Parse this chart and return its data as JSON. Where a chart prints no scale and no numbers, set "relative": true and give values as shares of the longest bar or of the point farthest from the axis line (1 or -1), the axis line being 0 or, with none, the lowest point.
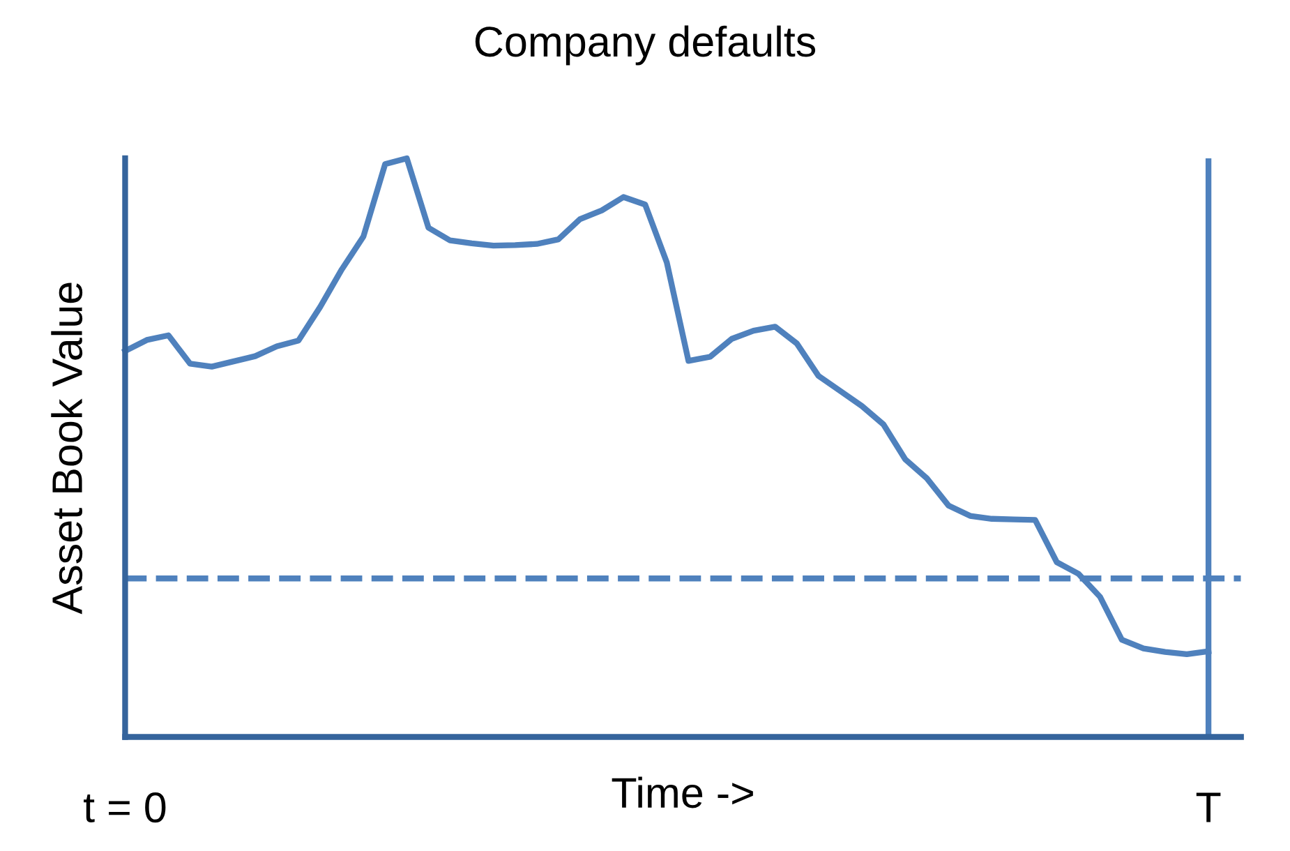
{
  "chart_data": {
    "type": "line",
    "title": "Company defaults",
    "xlabel": "Time ->",
    "ylabel": "Asset Book Value",
    "relative": true,
    "tick_labels": "x",
    "legend": false,
    "marker": "none",
    "line_style": "solid",
    "categories": [
      "t = 0",
      null,
      null,
      null,
      null,
      null,
      null,
      null,
      null,
      null,
      null,
      null,
      null,
      null,
      null,
      null,
      null,
      null,
      null,
      null,
      null,
      null,
      null,
      null,
      null,
      null,
      null,
      null,
      null,
      null,
      null,
      null,
      null,
      null,
      null,
      null,
      null,
      null,
      null,
      null,
      null,
      null,
      null,
      null,
      null,
      null,
      null,
      null,
      null,
      null,
      "T"
    ],
    "series": [
      {
        "color": "#4f81bd",
        "values": [
          0.667,
          0.686,
          0.694,
          0.645,
          0.64,
          0.649,
          0.658,
          0.675,
          0.685,
          0.743,
          0.808,
          0.865,
          0.99,
          1,
          0.88,
          0.858,
          0.853,
          0.849,
          0.85,
          0.852,
          0.86,
          0.895,
          0.91,
          0.933,
          0.92,
          0.82,
          0.65,
          0.657,
          0.688,
          0.702,
          0.709,
          0.68,
          0.624,
          0.598,
          0.572,
          0.54,
          0.48,
          0.447,
          0.4,
          0.382,
          0.377,
          0.376,
          0.375,
          0.302,
          0.282,
          0.242,
          0.168,
          0.153,
          0.147,
          0.143,
          0.148
        ]
      }
    ],
    "ref_lines": [
      {
        "axis": "y",
        "value": 0.274,
        "color": "#4f81bd",
        "line_style": "dashed"
      },
      {
        "axis": "x",
        "value": "T",
        "color": "#4f81bd",
        "line_style": "solid"
      }
    ]
  }
}
